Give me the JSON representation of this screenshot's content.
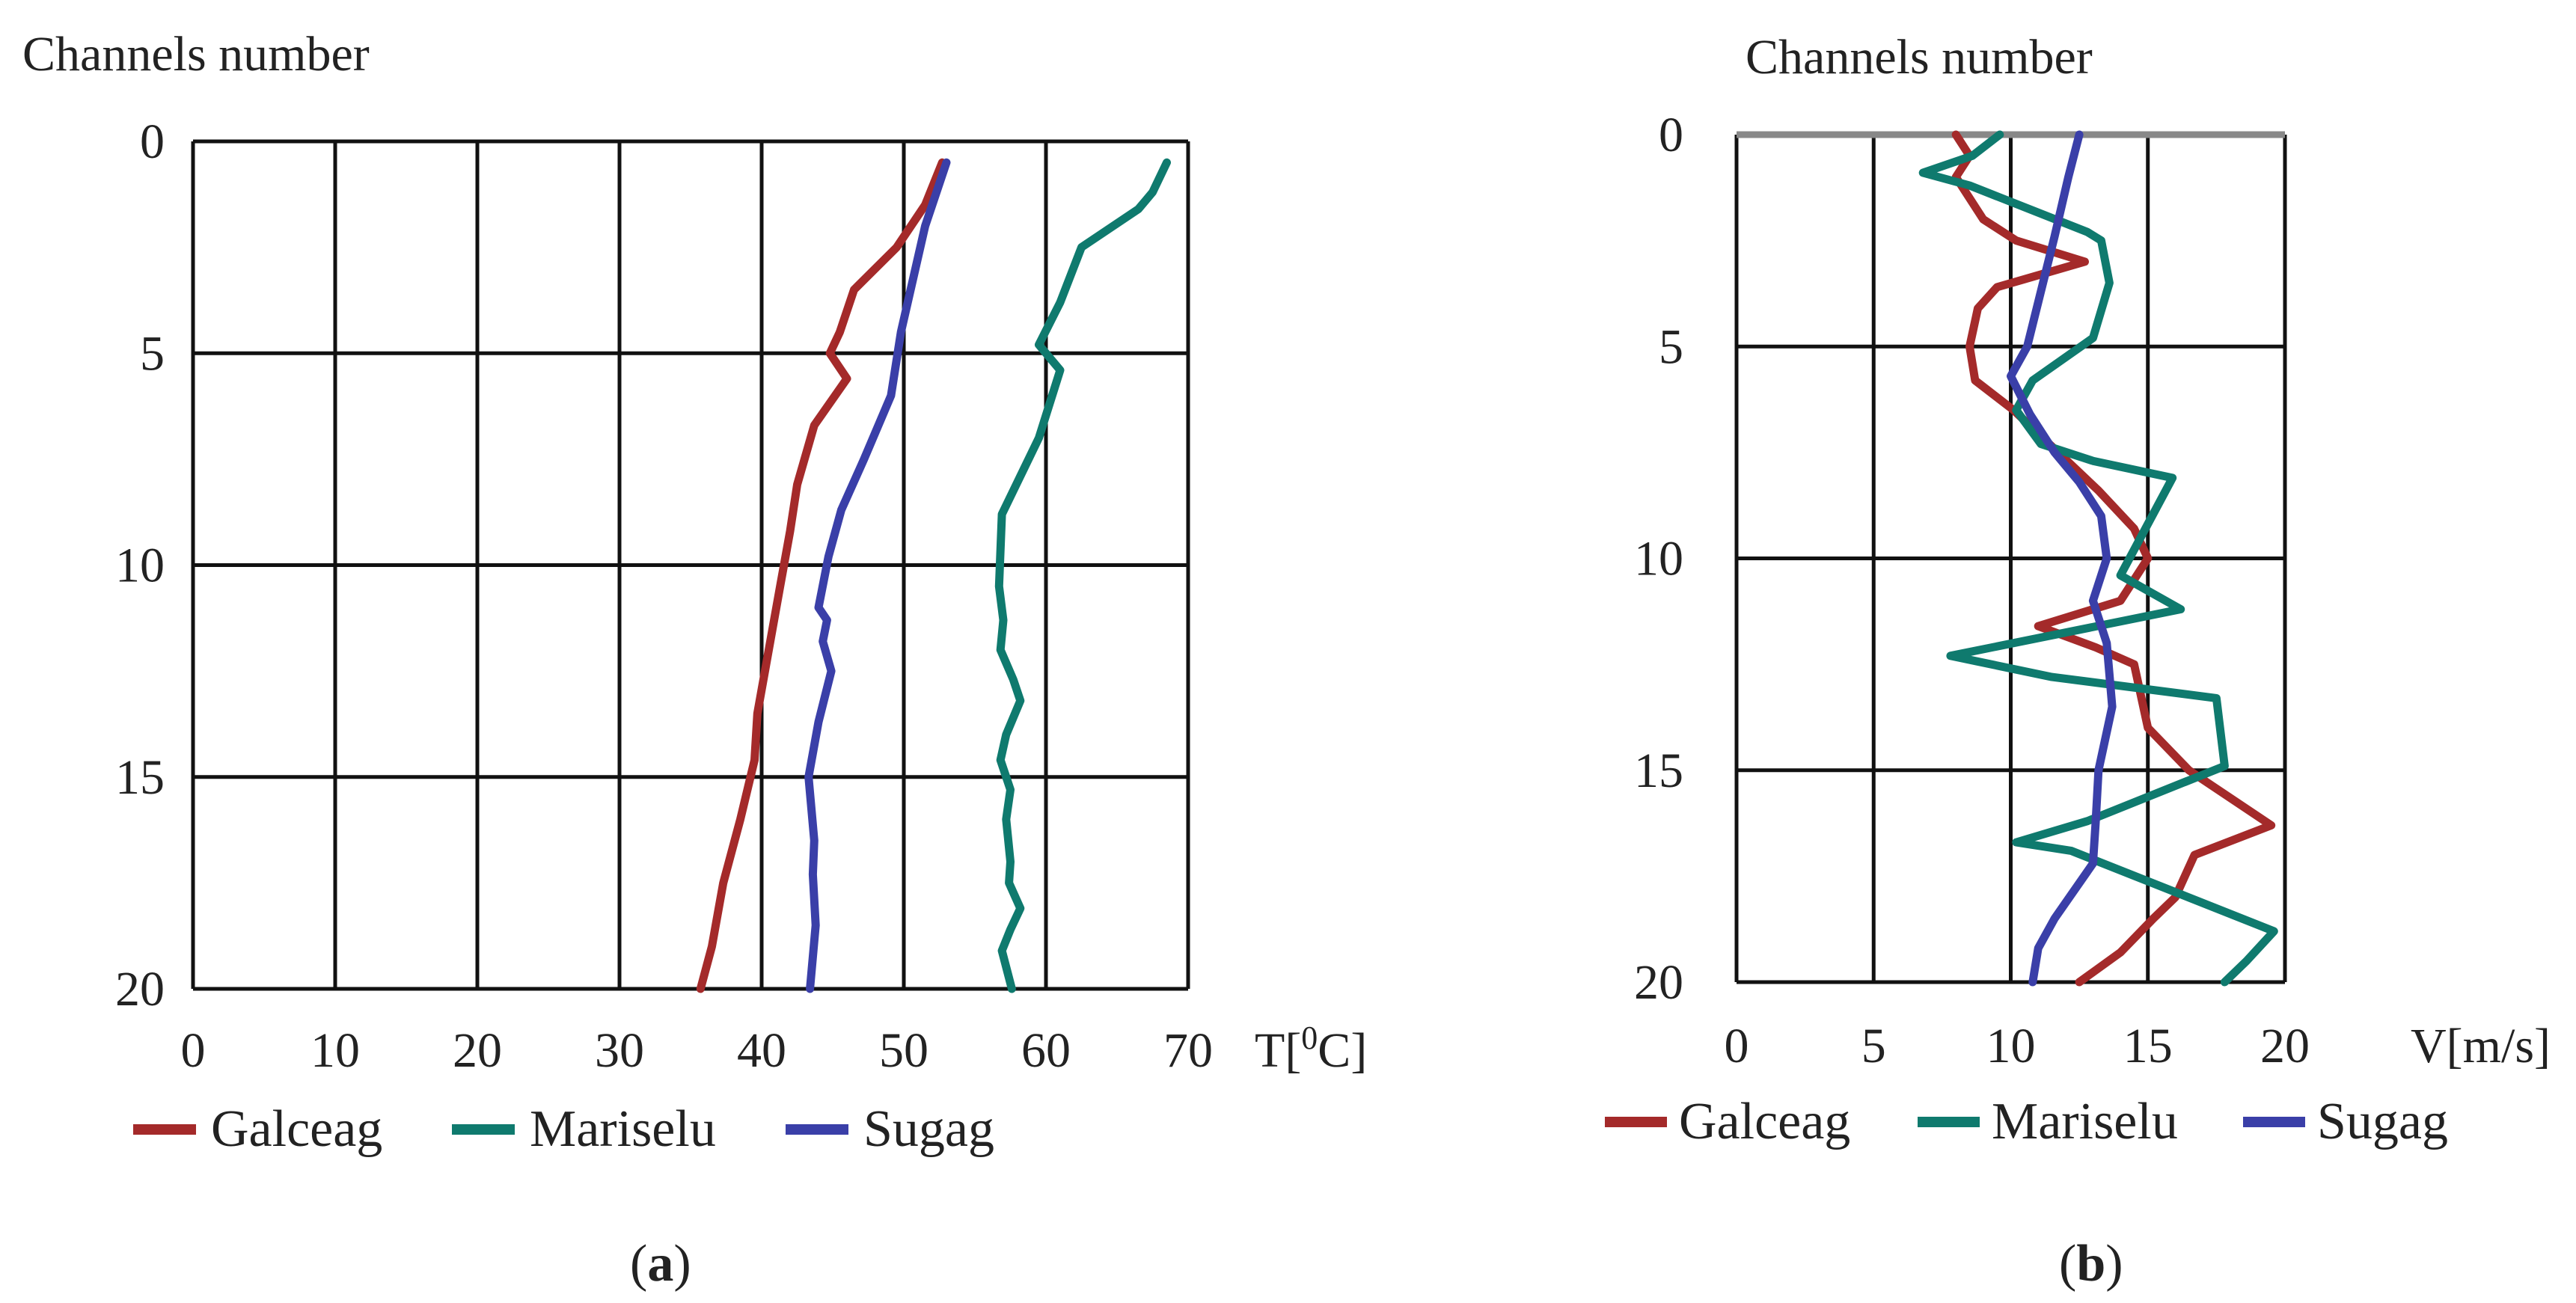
{
  "colors": {
    "galceag": "#a42a2a",
    "mariselu": "#0f7a6e",
    "sugag": "#3a3fa8",
    "grid": "#111111"
  },
  "chart_data": [
    {
      "type": "line",
      "panel_label_parts": [
        "(",
        "a",
        ")"
      ],
      "y_axis_title": "Channels number",
      "x_unit_label_parts": [
        "T[",
        "0",
        "C]"
      ],
      "xlim": [
        0,
        70
      ],
      "ylim": [
        0,
        20
      ],
      "y_reversed": true,
      "x_ticks": [
        0,
        10,
        20,
        30,
        40,
        50,
        60,
        70
      ],
      "y_ticks": [
        0,
        5,
        10,
        15,
        20
      ],
      "grid": true,
      "legend_position": "bottom",
      "series": [
        {
          "name": "Galceag",
          "color_key": "galceag",
          "points": [
            [
              52.7,
              0.5
            ],
            [
              51.5,
              1.5
            ],
            [
              49.5,
              2.5
            ],
            [
              46.5,
              3.5
            ],
            [
              45.5,
              4.5
            ],
            [
              44.8,
              5
            ],
            [
              46,
              5.6
            ],
            [
              43.7,
              6.7
            ],
            [
              42.5,
              8.1
            ],
            [
              42,
              9.2
            ],
            [
              41.3,
              10.5
            ],
            [
              40.5,
              12
            ],
            [
              39.7,
              13.5
            ],
            [
              39.5,
              14.6
            ],
            [
              38.5,
              16
            ],
            [
              37.3,
              17.5
            ],
            [
              36.5,
              19
            ],
            [
              35.7,
              20
            ]
          ]
        },
        {
          "name": "Mariselu",
          "color_key": "mariselu",
          "points": [
            [
              68.5,
              0.5
            ],
            [
              67.5,
              1.2
            ],
            [
              66.5,
              1.6
            ],
            [
              62.5,
              2.5
            ],
            [
              61,
              3.8
            ],
            [
              59.5,
              4.8
            ],
            [
              61,
              5.4
            ],
            [
              59.5,
              7
            ],
            [
              56.9,
              8.8
            ],
            [
              56.7,
              10.5
            ],
            [
              57,
              11.3
            ],
            [
              56.8,
              12
            ],
            [
              57.7,
              12.7
            ],
            [
              58.2,
              13.2
            ],
            [
              57.2,
              14
            ],
            [
              56.8,
              14.6
            ],
            [
              57.5,
              15.3
            ],
            [
              57.2,
              16
            ],
            [
              57.5,
              17
            ],
            [
              57.4,
              17.5
            ],
            [
              58.2,
              18.1
            ],
            [
              57.5,
              18.6
            ],
            [
              56.9,
              19.1
            ],
            [
              57.6,
              20
            ]
          ]
        },
        {
          "name": "Sugag",
          "color_key": "sugag",
          "points": [
            [
              53,
              0.5
            ],
            [
              51.5,
              2
            ],
            [
              49.8,
              4.5
            ],
            [
              49.1,
              6
            ],
            [
              47.2,
              7.5
            ],
            [
              45.6,
              8.7
            ],
            [
              44.7,
              9.8
            ],
            [
              44,
              11
            ],
            [
              44.6,
              11.3
            ],
            [
              44.3,
              11.8
            ],
            [
              44.9,
              12.5
            ],
            [
              44,
              13.7
            ],
            [
              43.3,
              15
            ],
            [
              43.7,
              16.5
            ],
            [
              43.6,
              17.3
            ],
            [
              43.8,
              18.5
            ],
            [
              43.4,
              20
            ]
          ]
        }
      ]
    },
    {
      "type": "line",
      "panel_label_parts": [
        "(",
        "b",
        ")"
      ],
      "y_axis_title": "Channels number",
      "x_unit_label": "V[m/s]",
      "xlim": [
        0,
        20
      ],
      "ylim": [
        0,
        20
      ],
      "y_reversed": true,
      "x_ticks": [
        0,
        5,
        10,
        15,
        20
      ],
      "y_ticks": [
        0,
        5,
        10,
        15,
        20
      ],
      "grid": true,
      "legend_position": "bottom",
      "series": [
        {
          "name": "Galceag",
          "color_key": "galceag",
          "points": [
            [
              8,
              0
            ],
            [
              8.5,
              0.5
            ],
            [
              8,
              1
            ],
            [
              9,
              2
            ],
            [
              10.2,
              2.5
            ],
            [
              12.7,
              3
            ],
            [
              9.5,
              3.6
            ],
            [
              8.8,
              4.1
            ],
            [
              8.5,
              5
            ],
            [
              8.7,
              5.8
            ],
            [
              10.1,
              6.5
            ],
            [
              13.2,
              8.4
            ],
            [
              14.5,
              9.3
            ],
            [
              15,
              10
            ],
            [
              14,
              11
            ],
            [
              11,
              11.6
            ],
            [
              13.1,
              12.1
            ],
            [
              14.5,
              12.5
            ],
            [
              15,
              14
            ],
            [
              16.5,
              15
            ],
            [
              19.5,
              16.3
            ],
            [
              16.7,
              17
            ],
            [
              16,
              18
            ],
            [
              15.2,
              18.5
            ],
            [
              14,
              19.3
            ],
            [
              12.5,
              20
            ]
          ]
        },
        {
          "name": "Mariselu",
          "color_key": "mariselu",
          "points": [
            [
              9.6,
              0
            ],
            [
              8.6,
              0.5
            ],
            [
              6.8,
              0.9
            ],
            [
              8.5,
              1.2
            ],
            [
              12.8,
              2.3
            ],
            [
              13.3,
              2.5
            ],
            [
              13.6,
              3.5
            ],
            [
              13,
              4.8
            ],
            [
              10.8,
              5.8
            ],
            [
              10.2,
              6.5
            ],
            [
              11.1,
              7.3
            ],
            [
              13,
              7.7
            ],
            [
              15.9,
              8.1
            ],
            [
              14,
              10.4
            ],
            [
              16.2,
              11.2
            ],
            [
              7.8,
              12.3
            ],
            [
              11.5,
              12.8
            ],
            [
              17.5,
              13.3
            ],
            [
              17.8,
              14.9
            ],
            [
              12.8,
              16.2
            ],
            [
              10.2,
              16.7
            ],
            [
              12.2,
              16.9
            ],
            [
              19.6,
              18.8
            ],
            [
              18.6,
              19.5
            ],
            [
              17.8,
              20
            ]
          ]
        },
        {
          "name": "Sugag",
          "color_key": "sugag",
          "points": [
            [
              12.5,
              0
            ],
            [
              12.1,
              1
            ],
            [
              11.6,
              2.4
            ],
            [
              11.1,
              3.7
            ],
            [
              10.6,
              5
            ],
            [
              10,
              5.7
            ],
            [
              10.7,
              6.6
            ],
            [
              11.6,
              7.5
            ],
            [
              12.5,
              8.2
            ],
            [
              13.3,
              9
            ],
            [
              13.5,
              10
            ],
            [
              13,
              11
            ],
            [
              13.5,
              12
            ],
            [
              13.7,
              13.5
            ],
            [
              13.2,
              15
            ],
            [
              13.1,
              16.2
            ],
            [
              13,
              17.2
            ],
            [
              11.6,
              18.5
            ],
            [
              11,
              19.2
            ],
            [
              10.8,
              20
            ]
          ]
        }
      ]
    }
  ]
}
